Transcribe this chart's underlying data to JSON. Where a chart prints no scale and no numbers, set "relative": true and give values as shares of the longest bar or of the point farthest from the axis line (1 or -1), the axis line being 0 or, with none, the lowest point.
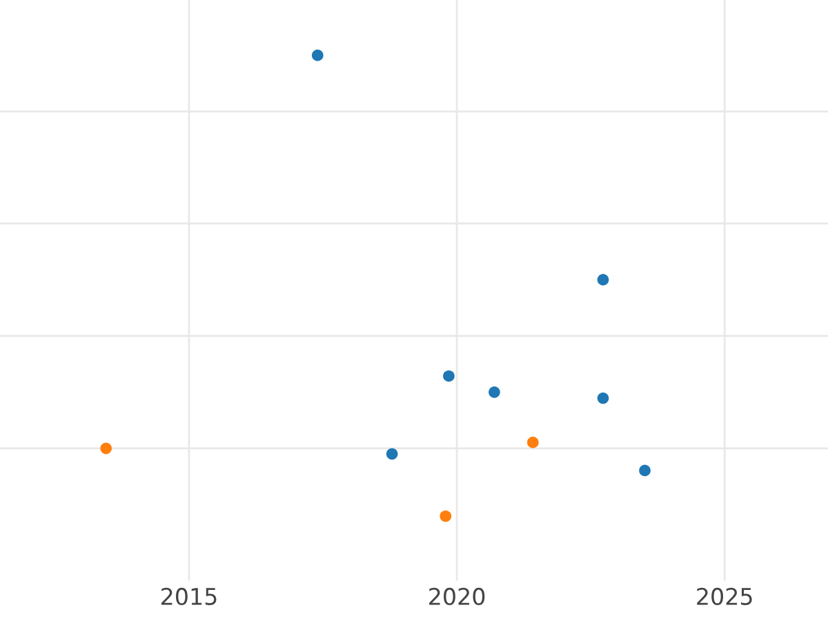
{
  "chart_data": {
    "type": "scatter",
    "relative": true,
    "grid": true,
    "marker": "circle",
    "xlim": [
      2011.47,
      2026.93
    ],
    "xticks": [
      2015,
      2020,
      2025
    ],
    "tick_labels": "x",
    "series": [
      {
        "color": "#1f77b4",
        "x": [
          2017.4,
          2022.73,
          2019.85,
          2020.7,
          2022.73,
          2018.79,
          2023.51
        ],
        "values": [
          1,
          0.513,
          0.304,
          0.269,
          0.256,
          0.135,
          0.099
        ]
      },
      {
        "color": "#ff7f0e",
        "x": [
          2013.45,
          2021.42,
          2019.79
        ],
        "values": [
          0.147,
          0.16,
          0
        ]
      }
    ]
  }
}
